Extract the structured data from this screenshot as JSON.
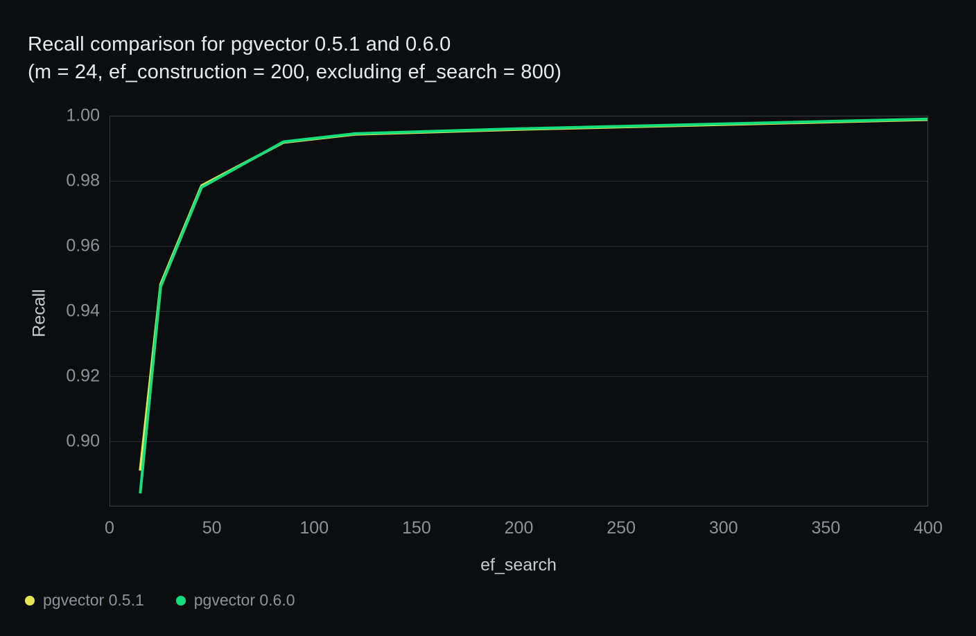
{
  "colors": {
    "background": "#0c0d0e",
    "title_text": "#e8eaec",
    "tick_text": "#8d929b",
    "axis_title_text": "#c6cbd1",
    "grid_line": "#2a2c2f",
    "plot_border": "#3a3d41",
    "series_yellow": "#e9e455",
    "series_green": "#12de7c"
  },
  "chart_data": {
    "type": "line",
    "title": "Recall comparison for pgvector 0.5.1 and 0.6.0",
    "subtitle": "(m = 24, ef_construction = 200, excluding ef_search = 800)",
    "xlabel": "ef_search",
    "ylabel": "Recall",
    "xlim": [
      0,
      400
    ],
    "ylim": [
      0.88,
      1.0
    ],
    "x_ticks": [
      0,
      50,
      100,
      150,
      200,
      250,
      300,
      350,
      400
    ],
    "y_ticks": [
      0.9,
      0.92,
      0.94,
      0.96,
      0.98,
      1.0
    ],
    "grid": "horizontal-only",
    "legend_position": "bottom-left",
    "x": [
      15,
      25,
      45,
      85,
      120,
      200,
      400
    ],
    "series": [
      {
        "name": "pgvector 0.5.1",
        "color": "#e9e455",
        "values": [
          0.891,
          0.9482,
          0.9785,
          0.9918,
          0.9943,
          0.9958,
          0.9988
        ]
      },
      {
        "name": "pgvector 0.6.0",
        "color": "#12de7c",
        "values": [
          0.884,
          0.9475,
          0.978,
          0.992,
          0.9945,
          0.996,
          0.999
        ]
      }
    ]
  },
  "legend": {
    "items": [
      {
        "label": "pgvector 0.5.1",
        "color": "#e9e455"
      },
      {
        "label": "pgvector 0.6.0",
        "color": "#12de7c"
      }
    ]
  }
}
